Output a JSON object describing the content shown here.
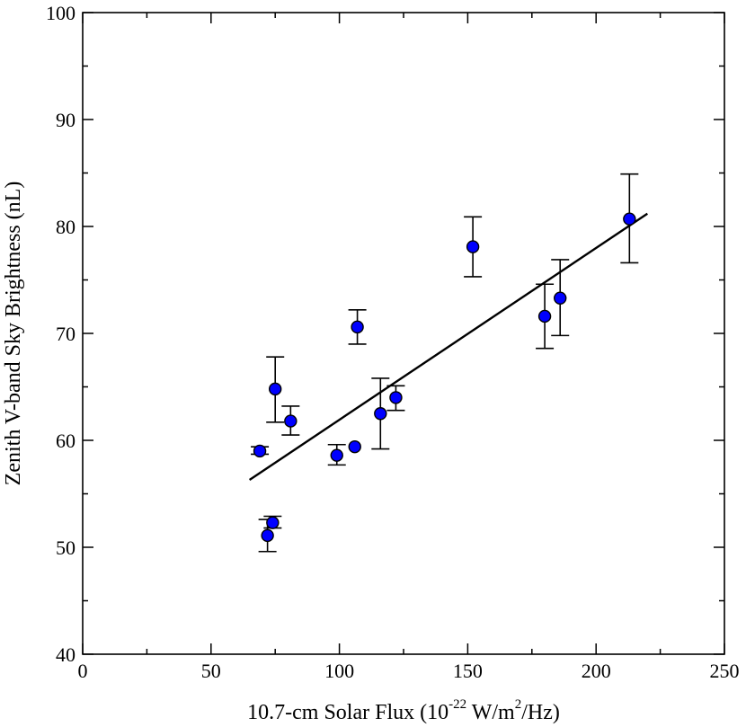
{
  "chart_data": {
    "type": "scatter",
    "title": "",
    "xlabel": "10.7-cm Solar Flux (10-22 W/m2/Hz)",
    "xlabel_parts": {
      "prefix": "10.7-cm Solar Flux (10",
      "exp1": "-22",
      "middle": " W/m",
      "exp2": "2",
      "suffix": "/Hz)"
    },
    "ylabel": "Zenith V-band Sky Brightness (nL)",
    "xlim": [
      0,
      250
    ],
    "ylim": [
      40,
      100
    ],
    "x_major_ticks": [
      0,
      50,
      100,
      150,
      200,
      250
    ],
    "x_minor_ticks": [
      25,
      75,
      125,
      175,
      225
    ],
    "y_major_ticks": [
      40,
      50,
      60,
      70,
      80,
      90,
      100
    ],
    "y_minor_ticks": [
      45,
      55,
      65,
      75,
      85,
      95
    ],
    "x_tick_labels": [
      "0",
      "50",
      "100",
      "150",
      "200",
      "250"
    ],
    "y_tick_labels": [
      "40",
      "50",
      "60",
      "70",
      "80",
      "90",
      "100"
    ],
    "grid": false,
    "marker_color": "#0000ff",
    "points": [
      {
        "x": 69,
        "y": 59.0,
        "err_low": 58.7,
        "err_high": 59.4
      },
      {
        "x": 72,
        "y": 51.1,
        "err_low": 49.6,
        "err_high": 52.6
      },
      {
        "x": 74,
        "y": 52.3,
        "err_low": 51.8,
        "err_high": 52.9
      },
      {
        "x": 75,
        "y": 64.8,
        "err_low": 61.7,
        "err_high": 67.8
      },
      {
        "x": 81,
        "y": 61.8,
        "err_low": 60.5,
        "err_high": 63.2
      },
      {
        "x": 99,
        "y": 58.6,
        "err_low": 57.7,
        "err_high": 59.6
      },
      {
        "x": 106,
        "y": 59.4,
        "err_low": 59.4,
        "err_high": 59.4
      },
      {
        "x": 107,
        "y": 70.6,
        "err_low": 69.0,
        "err_high": 72.2
      },
      {
        "x": 116,
        "y": 62.5,
        "err_low": 59.2,
        "err_high": 65.8
      },
      {
        "x": 122,
        "y": 64.0,
        "err_low": 62.8,
        "err_high": 65.1
      },
      {
        "x": 152,
        "y": 78.1,
        "err_low": 75.3,
        "err_high": 80.9
      },
      {
        "x": 180,
        "y": 71.6,
        "err_low": 68.6,
        "err_high": 74.6
      },
      {
        "x": 186,
        "y": 73.3,
        "err_low": 69.8,
        "err_high": 76.9
      },
      {
        "x": 213,
        "y": 80.7,
        "err_low": 76.6,
        "err_high": 84.9
      }
    ],
    "fit_line": {
      "x": [
        65,
        220
      ],
      "y": [
        56.3,
        81.2
      ]
    }
  }
}
